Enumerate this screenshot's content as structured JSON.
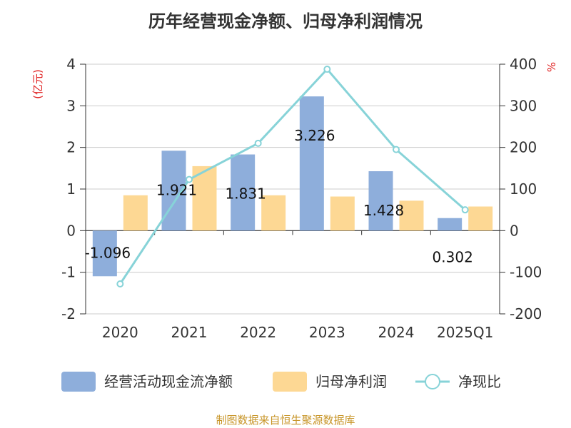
{
  "title": "历年经营现金净额、归母净利润情况",
  "source": "制图数据来自恒生聚源数据库",
  "chart_data": {
    "type": "bar",
    "categories": [
      "2020",
      "2021",
      "2022",
      "2023",
      "2024",
      "2025Q1"
    ],
    "series": [
      {
        "name": "经营活动现金流净额",
        "kind": "bar",
        "axis": "left",
        "color": "#8eaedb",
        "values": [
          -1.096,
          1.921,
          1.831,
          3.226,
          1.428,
          0.302
        ],
        "labels": [
          "-1.096",
          "1.921",
          "1.831",
          "3.226",
          "1.428",
          "0.302"
        ]
      },
      {
        "name": "归母净利润",
        "kind": "bar",
        "axis": "left",
        "color": "#fdd894",
        "values": [
          0.85,
          1.55,
          0.85,
          0.82,
          0.72,
          0.58
        ]
      },
      {
        "name": "净现比",
        "kind": "line",
        "axis": "right",
        "color": "#87d3d8",
        "values": [
          -128,
          123,
          210,
          388,
          195,
          50
        ]
      }
    ],
    "left_axis": {
      "unit": "(亿元)",
      "ylim": [
        -2,
        4
      ],
      "ticks": [
        4,
        3,
        2,
        1,
        0,
        -1,
        -2
      ]
    },
    "right_axis": {
      "unit": "%",
      "ylim": [
        -200,
        400
      ],
      "ticks": [
        400,
        300,
        200,
        100,
        0,
        -100,
        -200
      ]
    },
    "grid": true,
    "legend_position": "bottom"
  }
}
